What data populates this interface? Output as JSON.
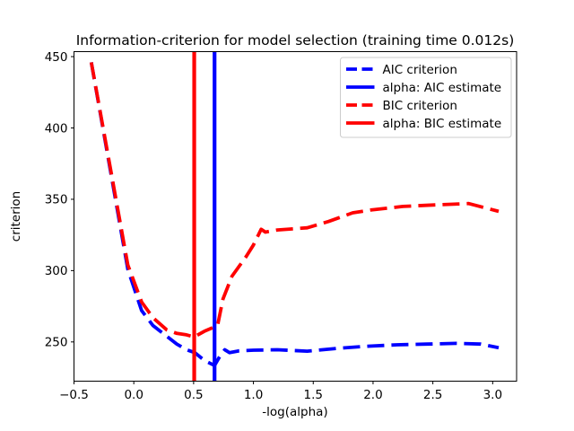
{
  "chart_data": {
    "type": "line",
    "title": "Information-criterion for model selection (training time 0.012s)",
    "xlabel": "-log(alpha)",
    "ylabel": "criterion",
    "xlim": [
      -0.5,
      3.2
    ],
    "ylim": [
      222.5,
      453.5
    ],
    "xticks": [
      -0.5,
      0.0,
      0.5,
      1.0,
      1.5,
      2.0,
      2.5,
      3.0
    ],
    "xtick_labels": [
      "−0.5",
      "0.0",
      "0.5",
      "1.0",
      "1.5",
      "2.0",
      "2.5",
      "3.0"
    ],
    "yticks": [
      250,
      300,
      350,
      400,
      450
    ],
    "ytick_labels": [
      "250",
      "300",
      "350",
      "400",
      "450"
    ],
    "grid": false,
    "frame_color": "#000000",
    "series": [
      {
        "name": "AIC criterion",
        "color": "#0000ff",
        "style": "dashed",
        "points": [
          [
            -0.355,
            446
          ],
          [
            -0.05,
            301
          ],
          [
            0.065,
            272
          ],
          [
            0.16,
            261.5
          ],
          [
            0.275,
            254
          ],
          [
            0.36,
            248.5
          ],
          [
            0.44,
            244.5
          ],
          [
            0.51,
            242.5
          ],
          [
            0.59,
            237
          ],
          [
            0.675,
            233.5
          ],
          [
            0.72,
            240
          ],
          [
            0.76,
            244.5
          ],
          [
            0.8,
            242.5
          ],
          [
            0.88,
            243.8
          ],
          [
            1.0,
            244.2
          ],
          [
            1.2,
            244.5
          ],
          [
            1.45,
            243.5
          ],
          [
            1.7,
            245.5
          ],
          [
            1.95,
            247
          ],
          [
            2.2,
            248
          ],
          [
            2.45,
            248.5
          ],
          [
            2.7,
            249
          ],
          [
            2.9,
            248.5
          ],
          [
            3.05,
            246
          ]
        ]
      },
      {
        "name": "BIC criterion",
        "color": "#ff0000",
        "style": "dashed",
        "points": [
          [
            -0.355,
            446
          ],
          [
            -0.05,
            304
          ],
          [
            0.065,
            278
          ],
          [
            0.16,
            267
          ],
          [
            0.275,
            258.5
          ],
          [
            0.36,
            256
          ],
          [
            0.44,
            255
          ],
          [
            0.505,
            253.5
          ],
          [
            0.59,
            257.5
          ],
          [
            0.7,
            261.5
          ],
          [
            0.745,
            280
          ],
          [
            0.82,
            296
          ],
          [
            0.94,
            310
          ],
          [
            1.0,
            318
          ],
          [
            1.065,
            329
          ],
          [
            1.1,
            327
          ],
          [
            1.2,
            328.5
          ],
          [
            1.45,
            330
          ],
          [
            1.63,
            334.5
          ],
          [
            1.83,
            340.5
          ],
          [
            1.98,
            342.5
          ],
          [
            2.25,
            345
          ],
          [
            2.5,
            346
          ],
          [
            2.8,
            347
          ],
          [
            3.05,
            341.5
          ]
        ]
      }
    ],
    "vlines": [
      {
        "name": "alpha: AIC estimate",
        "color": "#0000ff",
        "x": 0.675
      },
      {
        "name": "alpha: BIC estimate",
        "color": "#ff0000",
        "x": 0.505
      }
    ],
    "legend": {
      "position": "upper right",
      "border_color": "#cccccc",
      "background": "#ffffff",
      "entries": [
        {
          "label": "AIC criterion",
          "color": "#0000ff",
          "style": "dashed"
        },
        {
          "label": "alpha: AIC estimate",
          "color": "#0000ff",
          "style": "solid"
        },
        {
          "label": "BIC criterion",
          "color": "#ff0000",
          "style": "dashed"
        },
        {
          "label": "alpha: BIC estimate",
          "color": "#ff0000",
          "style": "solid"
        }
      ]
    }
  }
}
